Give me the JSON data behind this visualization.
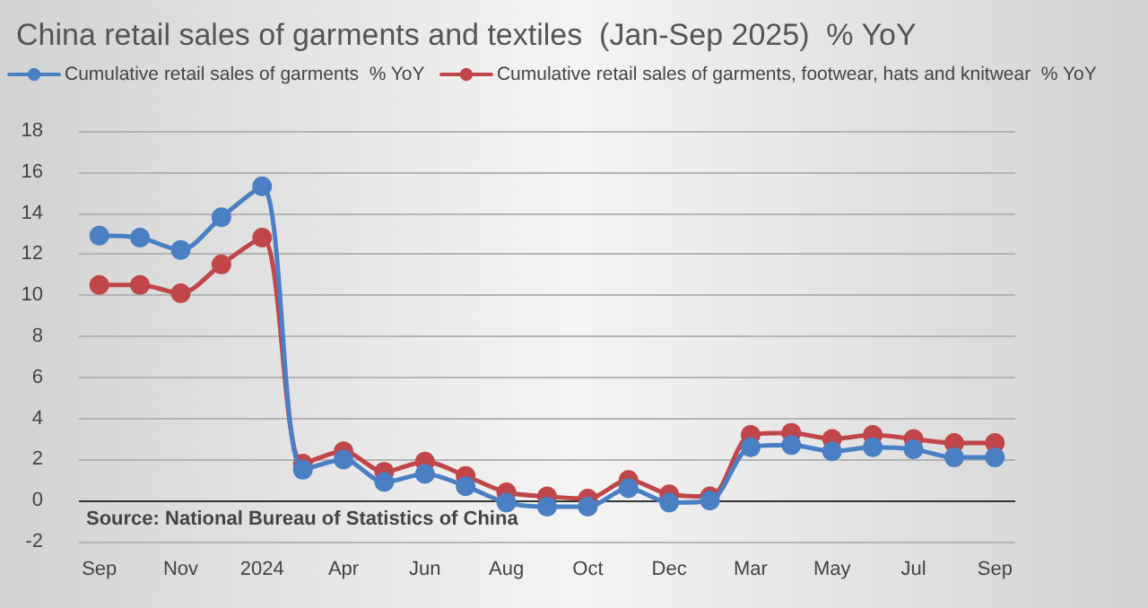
{
  "chart_data": {
    "type": "line",
    "title": "China retail sales of garments and textiles  (Jan-Sep 2025)  % YoY",
    "categories": [
      "Sep",
      null,
      "Nov",
      null,
      "2024",
      null,
      "Apr",
      null,
      "Jun",
      null,
      "Aug",
      null,
      "Oct",
      null,
      "Dec",
      null,
      "Mar",
      null,
      "May",
      null,
      "Jul",
      null,
      "Sep"
    ],
    "series": [
      {
        "name": "Cumulative retail sales of garments  % YoY",
        "color": "#4a7fc4",
        "values": [
          12.9,
          12.8,
          12.2,
          13.8,
          15.3,
          1.5,
          2.0,
          0.9,
          1.3,
          0.7,
          -0.1,
          -0.3,
          -0.3,
          0.6,
          -0.1,
          0.0,
          2.6,
          2.7,
          2.4,
          2.6,
          2.5,
          2.1,
          2.1
        ]
      },
      {
        "name": "Cumulative retail sales of garments, footwear, hats and knitwear  % YoY",
        "color": "#c0464a",
        "values": [
          10.5,
          10.5,
          10.1,
          11.5,
          12.8,
          1.8,
          2.4,
          1.4,
          1.9,
          1.2,
          0.4,
          0.2,
          0.1,
          1.0,
          0.3,
          0.2,
          3.2,
          3.3,
          3.0,
          3.2,
          3.0,
          2.8,
          2.8
        ]
      }
    ],
    "ylim": [
      -2,
      18
    ],
    "yticks": [
      -2,
      0,
      2,
      4,
      6,
      8,
      10,
      12,
      14,
      16,
      18
    ],
    "grid": "y",
    "legend": "top",
    "marker": "circle",
    "line_style": "solid",
    "annotations": [
      "Source: National Bureau of Statistics of China"
    ]
  }
}
